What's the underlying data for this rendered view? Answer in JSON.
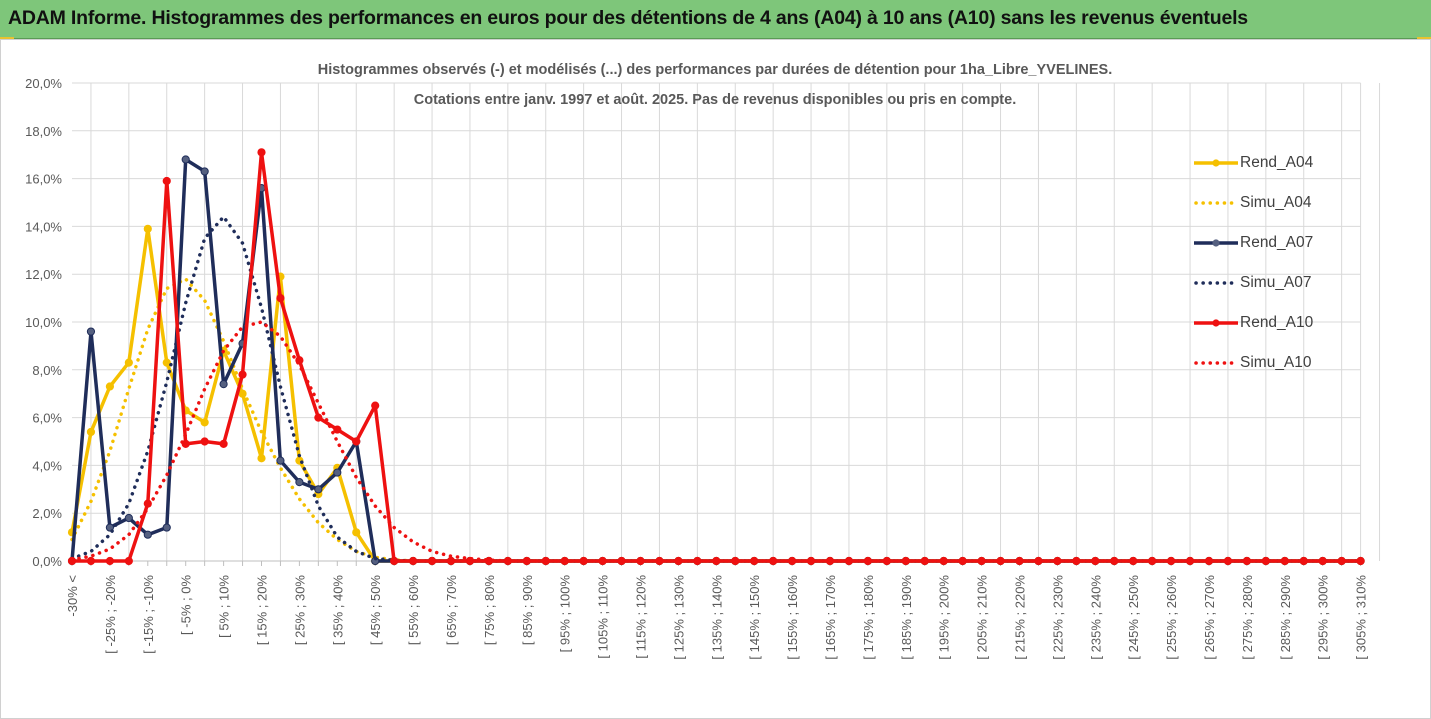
{
  "header": {
    "title": "ADAM Informe. Histogrammes des performances en euros pour des détentions de 4 ans (A04) à 10 ans (A10) sans les revenus éventuels"
  },
  "colors": {
    "banner": "#7ec67a",
    "Rend_A04": "#f5c000",
    "Simu_A04": "#f5c000",
    "Rend_A07": "#1f2d5a",
    "Simu_A07": "#1f2d5a",
    "Rend_A10": "#ee1111",
    "Simu_A10": "#ee1111",
    "grid": "#d9d9d9"
  },
  "chart_data": {
    "type": "line",
    "title_line1": "Histogrammes observés (-) et modélisés (...) des performances par durées de détention pour 1ha_Libre_YVELINES.",
    "title_line2": "Cotations entre janv. 1997 et août. 2025. Pas de revenus disponibles ou pris en compte.",
    "xlabel": "",
    "ylabel": "",
    "ylim": [
      0,
      20
    ],
    "y_ticks": [
      "0,0%",
      "2,0%",
      "4,0%",
      "6,0%",
      "8,0%",
      "10,0%",
      "12,0%",
      "14,0%",
      "16,0%",
      "18,0%",
      "20,0%"
    ],
    "x_tick_labels": [
      "-30% <",
      "[ -25% ; -20%",
      "[ -15% ; -10%",
      "[ -5% ; 0%",
      "[ 5% ; 10%",
      "[ 15% ; 20%",
      "[ 25% ; 30%",
      "[ 35% ; 40%",
      "[ 45% ; 50%",
      "[ 55% ; 60%",
      "[ 65% ; 70%",
      "[ 75% ; 80%",
      "[ 85% ; 90%",
      "[ 95% ; 100%",
      "[ 105% ; 110%",
      "[ 115% ; 120%",
      "[ 125% ; 130%",
      "[ 135% ; 140%",
      "[ 145% ; 150%",
      "[ 155% ; 160%",
      "[ 165% ; 170%",
      "[ 175% ; 180%",
      "[ 185% ; 190%",
      "[ 195% ; 200%",
      "[ 205% ; 210%",
      "[ 215% ; 220%",
      "[ 225% ; 230%",
      "[ 235% ; 240%",
      "[ 245% ; 250%",
      "[ 255% ; 260%",
      "[ 265% ; 270%",
      "[ 275% ; 280%",
      "[ 285% ; 290%",
      "[ 295% ; 300%",
      "[ 305% ; 310%"
    ],
    "legend_position": "right",
    "grid": true,
    "series": [
      {
        "name": "Rend_A04",
        "style": "solid",
        "values": [
          1.2,
          5.4,
          7.3,
          8.3,
          13.9,
          8.3,
          6.3,
          5.8,
          8.8,
          7.0,
          4.3,
          11.9,
          4.2,
          2.8,
          3.9,
          1.2,
          0,
          0,
          0,
          0,
          0,
          0,
          0,
          0,
          0,
          0,
          0,
          0,
          0,
          0,
          0,
          0,
          0,
          0,
          0,
          0,
          0,
          0,
          0,
          0,
          0,
          0,
          0,
          0,
          0,
          0,
          0,
          0,
          0,
          0,
          0,
          0,
          0,
          0,
          0,
          0,
          0,
          0,
          0,
          0,
          0,
          0,
          0,
          0,
          0,
          0,
          0,
          0,
          0
        ]
      },
      {
        "name": "Simu_A04",
        "style": "dotted",
        "values": [
          0.9,
          2.5,
          4.6,
          7.2,
          9.7,
          11.4,
          11.8,
          10.9,
          9.2,
          7.2,
          5.4,
          3.9,
          2.6,
          1.6,
          0.9,
          0.4,
          0.15,
          0.05,
          0,
          0,
          0,
          0,
          0,
          0,
          0,
          0,
          0,
          0,
          0,
          0,
          0,
          0,
          0,
          0,
          0,
          0,
          0,
          0,
          0,
          0,
          0,
          0,
          0,
          0,
          0,
          0,
          0,
          0,
          0,
          0,
          0,
          0,
          0,
          0,
          0,
          0,
          0,
          0,
          0,
          0,
          0,
          0,
          0,
          0,
          0,
          0,
          0,
          0,
          0
        ]
      },
      {
        "name": "Rend_A07",
        "style": "solid",
        "values": [
          0,
          9.6,
          1.4,
          1.8,
          1.1,
          1.4,
          16.8,
          16.3,
          7.4,
          9.1,
          15.6,
          4.2,
          3.3,
          3.0,
          3.7,
          5.0,
          0,
          0,
          0,
          0,
          0,
          0,
          0,
          0,
          0,
          0,
          0,
          0,
          0,
          0,
          0,
          0,
          0,
          0,
          0,
          0,
          0,
          0,
          0,
          0,
          0,
          0,
          0,
          0,
          0,
          0,
          0,
          0,
          0,
          0,
          0,
          0,
          0,
          0,
          0,
          0,
          0,
          0,
          0,
          0,
          0,
          0,
          0,
          0,
          0,
          0,
          0,
          0,
          0
        ]
      },
      {
        "name": "Simu_A07",
        "style": "dotted",
        "values": [
          0.1,
          0.4,
          1.1,
          2.4,
          4.6,
          7.5,
          10.8,
          13.5,
          14.4,
          13.3,
          10.6,
          7.3,
          4.4,
          2.3,
          1.0,
          0.4,
          0.1,
          0.03,
          0,
          0,
          0,
          0,
          0,
          0,
          0,
          0,
          0,
          0,
          0,
          0,
          0,
          0,
          0,
          0,
          0,
          0,
          0,
          0,
          0,
          0,
          0,
          0,
          0,
          0,
          0,
          0,
          0,
          0,
          0,
          0,
          0,
          0,
          0,
          0,
          0,
          0,
          0,
          0,
          0,
          0,
          0,
          0,
          0,
          0,
          0,
          0,
          0,
          0,
          0
        ]
      },
      {
        "name": "Rend_A10",
        "style": "solid",
        "values": [
          0,
          0,
          0,
          0,
          2.4,
          15.9,
          4.9,
          5.0,
          4.9,
          7.8,
          17.1,
          11.0,
          8.4,
          6.0,
          5.5,
          5.0,
          6.5,
          0,
          0,
          0,
          0,
          0,
          0,
          0,
          0,
          0,
          0,
          0,
          0,
          0,
          0,
          0,
          0,
          0,
          0,
          0,
          0,
          0,
          0,
          0,
          0,
          0,
          0,
          0,
          0,
          0,
          0,
          0,
          0,
          0,
          0,
          0,
          0,
          0,
          0,
          0,
          0,
          0,
          0,
          0,
          0,
          0,
          0,
          0,
          0,
          0,
          0,
          0,
          0
        ]
      },
      {
        "name": "Simu_A10",
        "style": "dotted",
        "values": [
          0.05,
          0.2,
          0.5,
          1.1,
          2.2,
          3.6,
          5.3,
          7.2,
          8.8,
          9.8,
          10.0,
          9.4,
          8.2,
          6.6,
          5.0,
          3.5,
          2.3,
          1.4,
          0.8,
          0.4,
          0.2,
          0.1,
          0.04,
          0,
          0,
          0,
          0,
          0,
          0,
          0,
          0,
          0,
          0,
          0,
          0,
          0,
          0,
          0,
          0,
          0,
          0,
          0,
          0,
          0,
          0,
          0,
          0,
          0,
          0,
          0,
          0,
          0,
          0,
          0,
          0,
          0,
          0,
          0,
          0,
          0,
          0,
          0,
          0,
          0,
          0,
          0,
          0,
          0,
          0
        ]
      }
    ]
  }
}
